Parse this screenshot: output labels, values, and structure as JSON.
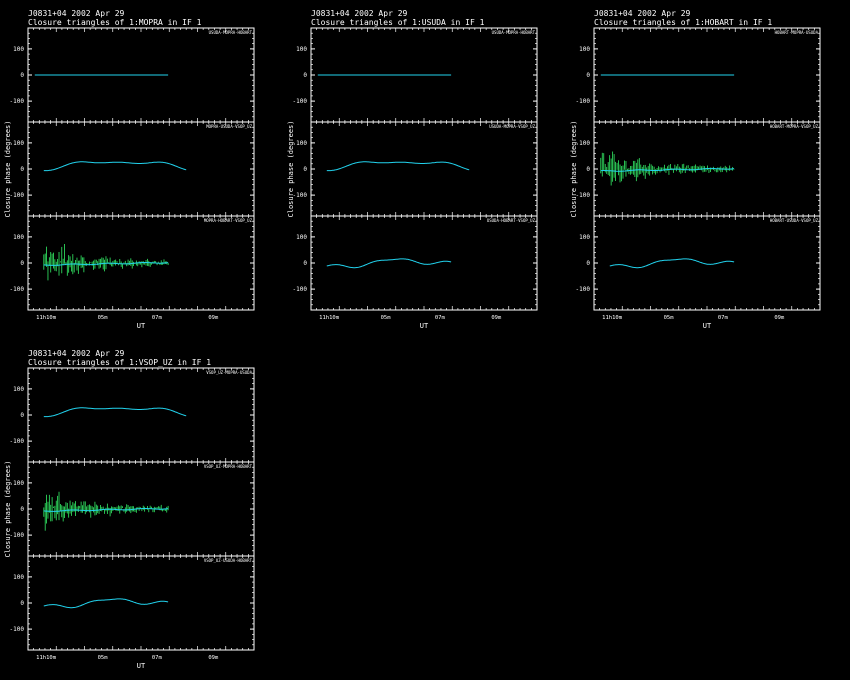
{
  "colors": {
    "background": "#000000",
    "frame": "#ffffff",
    "model_line": "#22d3ee",
    "data_points": "#33ee66"
  },
  "chart_data": [
    {
      "type": "line",
      "source": "J0831+04",
      "date": "2002 Apr 29",
      "subtitle": "Closure triangles of 1:MOPRA in IF 1",
      "ylabel": "Closure phase (degrees)",
      "xlabel": "UT",
      "x_ticks": [
        "11h10m",
        "05m",
        "07m",
        "09m"
      ],
      "panels": [
        {
          "label": "USUDA-MOPRA-HOBART",
          "ylim": [
            -180,
            180
          ],
          "y_ticks": [
            "100",
            "0",
            "-100"
          ],
          "kind": "flat",
          "xrange": [
            0.03,
            0.62
          ],
          "seed": 1
        },
        {
          "label": "MOPRA-USUDA-VSOP_UZ",
          "ylim": [
            -180,
            180
          ],
          "y_ticks": [
            "100",
            "0",
            "-100"
          ],
          "kind": "wave",
          "xrange": [
            0.07,
            0.7
          ],
          "seed": 2
        },
        {
          "label": "MOPRA-HOBART-VSOP_UZ",
          "ylim": [
            -180,
            180
          ],
          "y_ticks": [
            "100",
            "0",
            "-100"
          ],
          "kind": "noisy",
          "xrange": [
            0.07,
            0.62
          ],
          "seed": 3
        }
      ]
    },
    {
      "type": "line",
      "source": "J0831+04",
      "date": "2002 Apr 29",
      "subtitle": "Closure triangles of 1:USUDA in IF 1",
      "ylabel": "Closure phase (degrees)",
      "xlabel": "UT",
      "x_ticks": [
        "11h10m",
        "05m",
        "07m",
        "09m"
      ],
      "panels": [
        {
          "label": "USUDA-MOPRA-HOBART",
          "ylim": [
            -180,
            180
          ],
          "y_ticks": [
            "100",
            "0",
            "-100"
          ],
          "kind": "flat",
          "xrange": [
            0.03,
            0.62
          ],
          "seed": 4
        },
        {
          "label": "USUDA-MOPRA-VSOP_UZ",
          "ylim": [
            -180,
            180
          ],
          "y_ticks": [
            "100",
            "0",
            "-100"
          ],
          "kind": "wave",
          "xrange": [
            0.07,
            0.7
          ],
          "seed": 5
        },
        {
          "label": "USUDA-HOBART-VSOP_UZ",
          "ylim": [
            -180,
            180
          ],
          "y_ticks": [
            "100",
            "0",
            "-100"
          ],
          "kind": "wave2",
          "xrange": [
            0.07,
            0.62
          ],
          "seed": 6
        }
      ]
    },
    {
      "type": "line",
      "source": "J0831+04",
      "date": "2002 Apr 29",
      "subtitle": "Closure triangles of 1:HOBART in IF 1",
      "ylabel": "Closure phase (degrees)",
      "xlabel": "UT",
      "x_ticks": [
        "11h10m",
        "05m",
        "07m",
        "09m"
      ],
      "panels": [
        {
          "label": "HOBART-MOPRA-USUDA",
          "ylim": [
            -180,
            180
          ],
          "y_ticks": [
            "100",
            "0",
            "-100"
          ],
          "kind": "flat",
          "xrange": [
            0.03,
            0.62
          ],
          "seed": 7
        },
        {
          "label": "HOBART-MOPRA-VSOP_UZ",
          "ylim": [
            -180,
            180
          ],
          "y_ticks": [
            "100",
            "0",
            "-100"
          ],
          "kind": "noisy",
          "xrange": [
            0.03,
            0.62
          ],
          "seed": 8
        },
        {
          "label": "HOBART-USUDA-VSOP_UZ",
          "ylim": [
            -180,
            180
          ],
          "y_ticks": [
            "100",
            "0",
            "-100"
          ],
          "kind": "wave2",
          "xrange": [
            0.07,
            0.62
          ],
          "seed": 9
        }
      ]
    },
    {
      "type": "line",
      "source": "J0831+04",
      "date": "2002 Apr 29",
      "subtitle": "Closure triangles of 1:VSOP_UZ in IF 1",
      "ylabel": "Closure phase (degrees)",
      "xlabel": "UT",
      "x_ticks": [
        "11h10m",
        "05m",
        "07m",
        "09m"
      ],
      "panels": [
        {
          "label": "VSOP_UZ-MOPRA-USUDA",
          "ylim": [
            -180,
            180
          ],
          "y_ticks": [
            "100",
            "0",
            "-100"
          ],
          "kind": "wave",
          "xrange": [
            0.07,
            0.7
          ],
          "seed": 10
        },
        {
          "label": "VSOP_UZ-MOPRA-HOBART",
          "ylim": [
            -180,
            180
          ],
          "y_ticks": [
            "100",
            "0",
            "-100"
          ],
          "kind": "noisy",
          "xrange": [
            0.07,
            0.62
          ],
          "seed": 11
        },
        {
          "label": "VSOP_UZ-USUDA-HOBART",
          "ylim": [
            -180,
            180
          ],
          "y_ticks": [
            "100",
            "0",
            "-100"
          ],
          "kind": "wave2",
          "xrange": [
            0.07,
            0.62
          ],
          "seed": 12
        }
      ]
    }
  ]
}
